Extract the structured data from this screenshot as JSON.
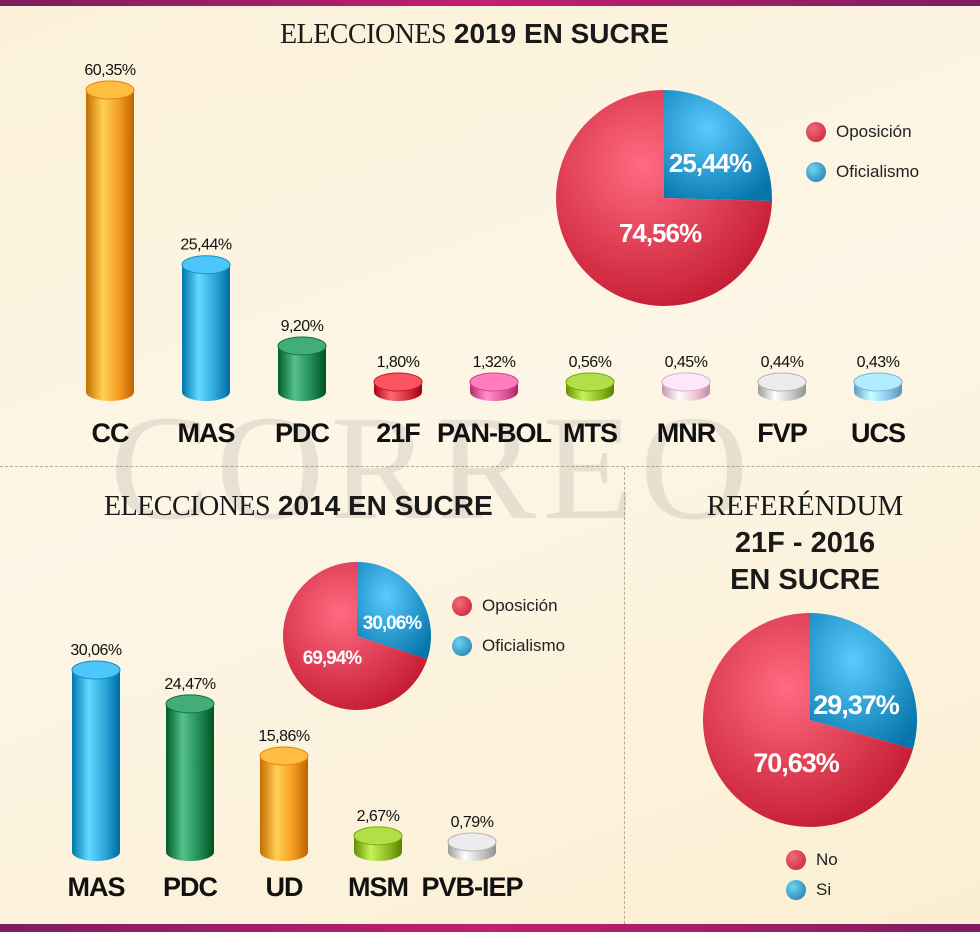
{
  "sections": {
    "s2019": {
      "title_light": "ELECCIONES",
      "title_bold": "2019  EN SUCRE"
    },
    "s2014": {
      "title_light": "ELECCIONES",
      "title_bold": "2014 EN SUCRE"
    },
    "ref": {
      "line1": "REFERÉNDUM",
      "line2": "21F - 2016",
      "line3": "EN SUCRE"
    }
  },
  "watermark": "CORREO",
  "legends": {
    "pie2019": [
      "Oposición",
      "Oficialismo"
    ],
    "pie2014": [
      "Oposición",
      "Oficialismo"
    ],
    "ref": [
      "No",
      "Si"
    ]
  },
  "colors": {
    "orange": "#f39a1e",
    "blue": "#2aa3d8",
    "green": "#1f8a55",
    "red": "#d8303f",
    "pink": "#e45a9a",
    "olive": "#8fbc24",
    "lightpink": "#f2c4d8",
    "silver": "#c9c9c9",
    "lightblue": "#8fc9ee",
    "pie_red": "#d92f45",
    "pie_blue": "#1e8fc4"
  },
  "chart_data": [
    {
      "type": "bar",
      "title": "ELECCIONES 2019 EN SUCRE",
      "categories": [
        "CC",
        "MAS",
        "PDC",
        "21F",
        "PAN-BOL",
        "MTS",
        "MNR",
        "FVP",
        "UCS"
      ],
      "values": [
        60.35,
        25.44,
        9.2,
        1.8,
        1.32,
        0.56,
        0.45,
        0.44,
        0.43
      ],
      "labels": [
        "60,35%",
        "25,44%",
        "9,20%",
        "1,80%",
        "1,32%",
        "0,56%",
        "0,45%",
        "0,44%",
        "0,43%"
      ],
      "colors": [
        "orange",
        "blue",
        "green",
        "red",
        "pink",
        "olive",
        "lightpink",
        "silver",
        "lightblue"
      ]
    },
    {
      "type": "pie",
      "slices": [
        {
          "name": "Oposición",
          "value": 74.56,
          "label": "74,56%",
          "color": "pie_red"
        },
        {
          "name": "Oficialismo",
          "value": 25.44,
          "label": "25,44%",
          "color": "pie_blue"
        }
      ]
    },
    {
      "type": "bar",
      "title": "ELECCIONES 2014 EN SUCRE",
      "categories": [
        "MAS",
        "PDC",
        "UD",
        "MSM",
        "PVB-IEP"
      ],
      "values": [
        30.06,
        24.47,
        15.86,
        2.67,
        0.79
      ],
      "labels": [
        "30,06%",
        "24,47%",
        "15,86%",
        "2,67%",
        "0,79%"
      ],
      "colors": [
        "blue",
        "green",
        "orange",
        "olive",
        "silver"
      ]
    },
    {
      "type": "pie",
      "slices": [
        {
          "name": "Oposición",
          "value": 69.94,
          "label": "69,94%",
          "color": "pie_red"
        },
        {
          "name": "Oficialismo",
          "value": 30.06,
          "label": "30,06%",
          "color": "pie_blue"
        }
      ]
    },
    {
      "type": "pie",
      "title": "REFERÉNDUM 21F - 2016 EN SUCRE",
      "slices": [
        {
          "name": "No",
          "value": 70.63,
          "label": "70,63%",
          "color": "pie_red"
        },
        {
          "name": "Si",
          "value": 29.37,
          "label": "29,37%",
          "color": "pie_blue"
        }
      ]
    }
  ]
}
